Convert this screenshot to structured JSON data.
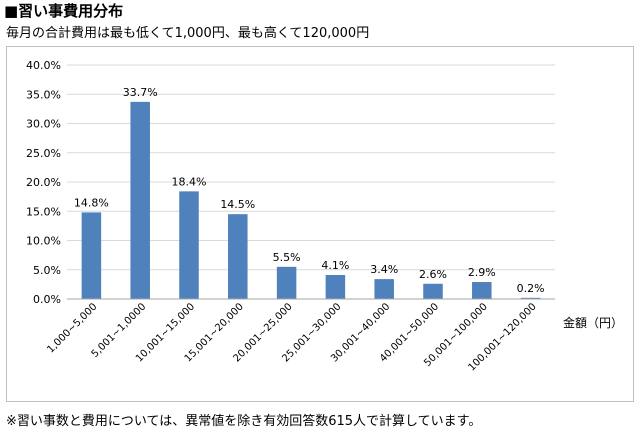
{
  "header": {
    "title": "■習い事費用分布",
    "subtitle": "毎月の合計費用は最も低くて1,000円、最も高くて120,000円"
  },
  "footnote": "※習い事数と費用については、異常値を除き有効回答数615人で計算しています。",
  "colors": {
    "bar": "#4f81bd",
    "grid": "#d9d9d9",
    "axis": "#a6a6a6",
    "frame": "#bfbfbf"
  },
  "chart_data": {
    "type": "bar",
    "title": "",
    "xlabel": "金額（円）",
    "ylabel": "",
    "categories": [
      "1,000~5,000",
      "5,001~1,0000",
      "10,001~15,000",
      "15,001~20,000",
      "20,001~25,000",
      "25,001~30,000",
      "30,001~40,000",
      "40,001~50,000",
      "50,001~100,000",
      "100,001~120,000"
    ],
    "values": [
      14.8,
      33.7,
      18.4,
      14.5,
      5.5,
      4.1,
      3.4,
      2.6,
      2.9,
      0.2
    ],
    "value_labels": [
      "14.8%",
      "33.7%",
      "18.4%",
      "14.5%",
      "5.5%",
      "4.1%",
      "3.4%",
      "2.6%",
      "2.9%",
      "0.2%"
    ],
    "yticks": [
      "0.0%",
      "5.0%",
      "10.0%",
      "15.0%",
      "20.0%",
      "25.0%",
      "30.0%",
      "35.0%",
      "40.0%"
    ],
    "ylim": [
      0,
      40
    ],
    "ytick_step": 5,
    "grid": true,
    "legend": "none"
  }
}
